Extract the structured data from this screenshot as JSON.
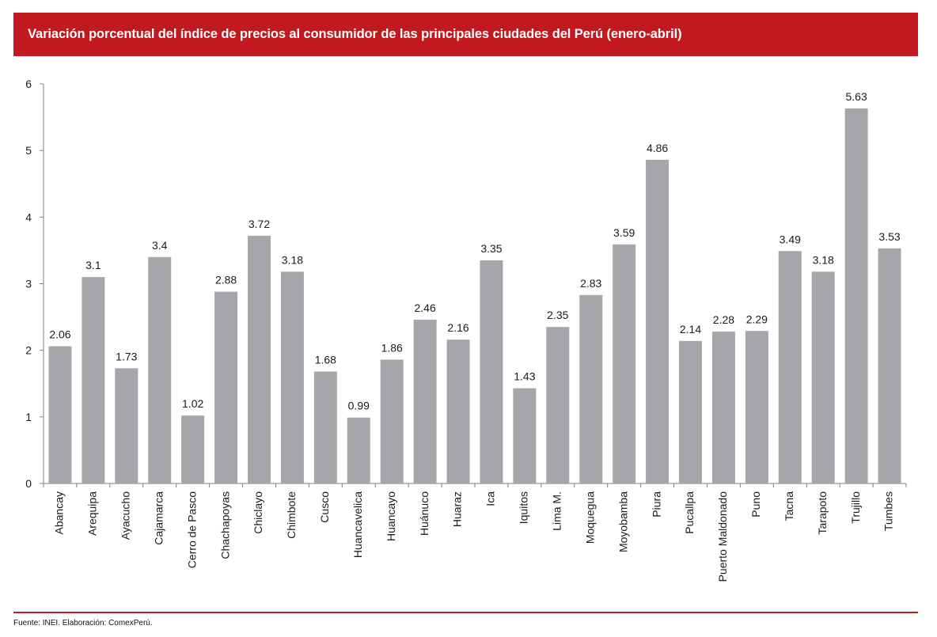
{
  "colors": {
    "brand": "#C1191F",
    "bar": "#A6A5AA",
    "axis": "#7f7f7f"
  },
  "header": {
    "title": "Variación porcentual del índice de precios al consumidor de las principales ciudades del Perú (enero-abril)"
  },
  "footer": {
    "source": "Fuente: INEI. Elaboración: ComexPerú."
  },
  "chart_data": {
    "type": "bar",
    "title": "Variación porcentual del índice de precios al consumidor de las principales ciudades del Perú (enero-abril)",
    "xlabel": "",
    "ylabel": "",
    "ylim": [
      0,
      6
    ],
    "yticks": [
      0,
      1,
      2,
      3,
      4,
      5,
      6
    ],
    "grid": false,
    "categories": [
      "Abancay",
      "Arequipa",
      "Ayacucho",
      "Cajamarca",
      "Cerro de Pasco",
      "Chachapoyas",
      "Chiclayo",
      "Chimbote",
      "Cusco",
      "Huancavelica",
      "Huancayo",
      "Huánuco",
      "Huaraz",
      "Ica",
      "Iquitos",
      "Lima M.",
      "Moquegua",
      "Moyobamba",
      "Piura",
      "Pucallpa",
      "Puerto Maldonado",
      "Puno",
      "Tacna",
      "Tarapoto",
      "Trujillo",
      "Tumbes"
    ],
    "values": [
      2.06,
      3.1,
      1.73,
      3.4,
      1.02,
      2.88,
      3.72,
      3.18,
      1.68,
      0.99,
      1.86,
      2.46,
      2.16,
      3.35,
      1.43,
      2.35,
      2.83,
      3.59,
      4.86,
      2.14,
      2.28,
      2.29,
      3.49,
      3.18,
      5.63,
      3.53
    ],
    "value_labels": [
      "2.06",
      "3.1",
      "1.73",
      "3.4",
      "1.02",
      "2.88",
      "3.72",
      "3.18",
      "1.68",
      "0.99",
      "1.86",
      "2.46",
      "2.16",
      "3.35",
      "1.43",
      "2.35",
      "2.83",
      "3.59",
      "4.86",
      "2.14",
      "2.28",
      "2.29",
      "3.49",
      "3.18",
      "5.63",
      "3.53"
    ]
  }
}
